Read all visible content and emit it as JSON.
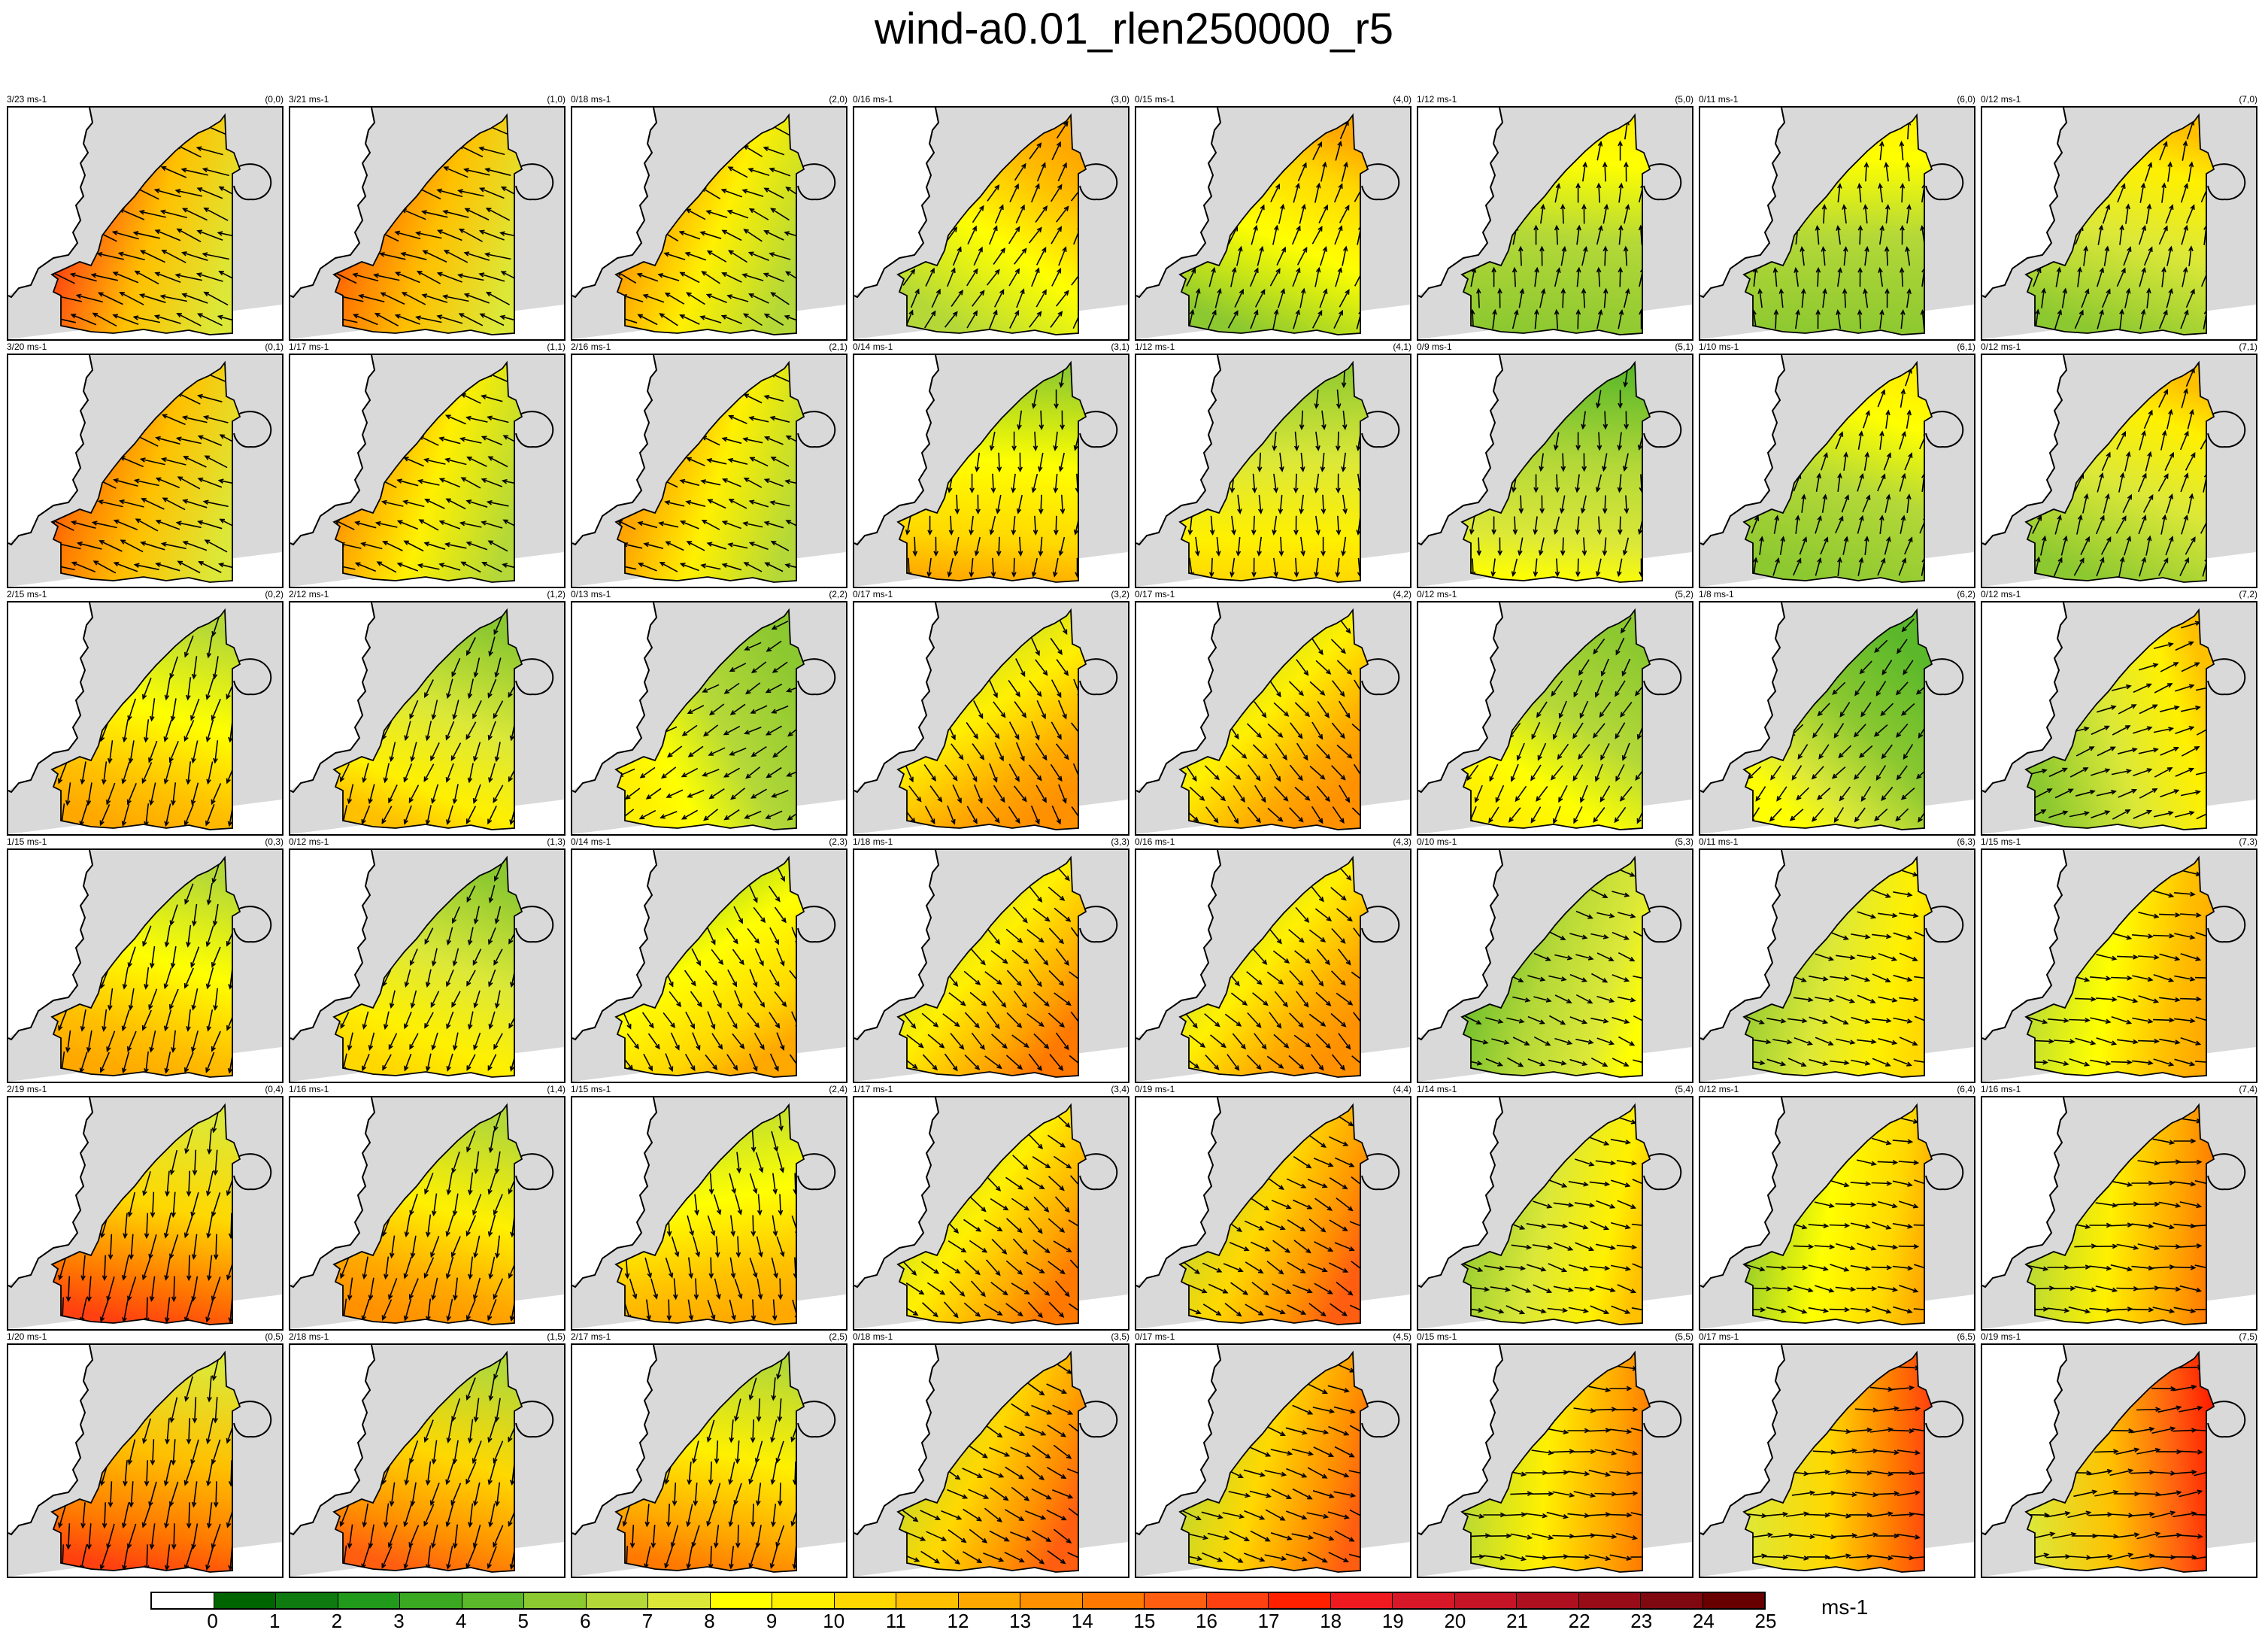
{
  "chart_data": {
    "type": "heatmap",
    "title": "wind-a0.01_rlen250000_r5",
    "colorbar": {
      "tick_labels": [
        "0",
        "1",
        "2",
        "3",
        "4",
        "5",
        "6",
        "7",
        "8",
        "9",
        "10",
        "11",
        "12",
        "13",
        "14",
        "15",
        "16",
        "17",
        "18",
        "19",
        "20",
        "21",
        "22",
        "23",
        "24",
        "25"
      ],
      "unit": "ms-1",
      "colors": [
        "#ffffff",
        "#006400",
        "#0e7a10",
        "#219a1c",
        "#3aa820",
        "#5ab82a",
        "#8cc830",
        "#b4d838",
        "#dce838",
        "#ffff00",
        "#fff000",
        "#ffd800",
        "#ffc000",
        "#ffa800",
        "#ff9000",
        "#ff7800",
        "#ff5e10",
        "#ff4010",
        "#ff2000",
        "#ee1a20",
        "#d81828",
        "#c41426",
        "#ae1020",
        "#980c18",
        "#800810",
        "#680000"
      ]
    },
    "panels": [
      {
        "col": 0,
        "row": 0,
        "range": "3/23 ms-1",
        "index": "(0,0)",
        "dir": 200,
        "speed": 0.82,
        "hot": 0.95
      },
      {
        "col": 1,
        "row": 0,
        "range": "3/21 ms-1",
        "index": "(1,0)",
        "dir": 200,
        "speed": 0.78,
        "hot": 0.9
      },
      {
        "col": 2,
        "row": 0,
        "range": "0/18 ms-1",
        "index": "(2,0)",
        "dir": 205,
        "speed": 0.55,
        "hot": 0.75
      },
      {
        "col": 3,
        "row": 0,
        "range": "0/16 ms-1",
        "index": "(3,0)",
        "dir": 300,
        "speed": 0.45,
        "hot": 0.65
      },
      {
        "col": 4,
        "row": 0,
        "range": "0/15 ms-1",
        "index": "(4,0)",
        "dir": 290,
        "speed": 0.45,
        "hot": 0.6
      },
      {
        "col": 5,
        "row": 0,
        "range": "1/12 ms-1",
        "index": "(5,0)",
        "dir": 275,
        "speed": 0.42,
        "hot": 0.45
      },
      {
        "col": 6,
        "row": 0,
        "range": "0/11 ms-1",
        "index": "(6,0)",
        "dir": 270,
        "speed": 0.4,
        "hot": 0.45
      },
      {
        "col": 7,
        "row": 0,
        "range": "0/12 ms-1",
        "index": "(7,0)",
        "dir": 285,
        "speed": 0.45,
        "hot": 0.55
      },
      {
        "col": 0,
        "row": 1,
        "range": "3/20 ms-1",
        "index": "(0,1)",
        "dir": 200,
        "speed": 0.72,
        "hot": 0.9
      },
      {
        "col": 1,
        "row": 1,
        "range": "1/17 ms-1",
        "index": "(1,1)",
        "dir": 200,
        "speed": 0.55,
        "hot": 0.75
      },
      {
        "col": 2,
        "row": 1,
        "range": "2/16 ms-1",
        "index": "(2,1)",
        "dir": 200,
        "speed": 0.45,
        "hot": 0.7
      },
      {
        "col": 3,
        "row": 1,
        "range": "0/14 ms-1",
        "index": "(3,1)",
        "dir": 95,
        "speed": 0.4,
        "hot": 0.6
      },
      {
        "col": 4,
        "row": 1,
        "range": "1/12 ms-1",
        "index": "(4,1)",
        "dir": 90,
        "speed": 0.4,
        "hot": 0.5
      },
      {
        "col": 5,
        "row": 1,
        "range": "0/9 ms-1",
        "index": "(5,1)",
        "dir": 95,
        "speed": 0.35,
        "hot": 0.4
      },
      {
        "col": 6,
        "row": 1,
        "range": "1/10 ms-1",
        "index": "(6,1)",
        "dir": 285,
        "speed": 0.38,
        "hot": 0.45
      },
      {
        "col": 7,
        "row": 1,
        "range": "0/12 ms-1",
        "index": "(7,1)",
        "dir": 290,
        "speed": 0.45,
        "hot": 0.55
      },
      {
        "col": 0,
        "row": 2,
        "range": "2/15 ms-1",
        "index": "(0,2)",
        "dir": 105,
        "speed": 0.6,
        "hot": 0.65
      },
      {
        "col": 1,
        "row": 2,
        "range": "2/12 ms-1",
        "index": "(1,2)",
        "dir": 110,
        "speed": 0.45,
        "hot": 0.55
      },
      {
        "col": 2,
        "row": 2,
        "range": "0/13 ms-1",
        "index": "(2,2)",
        "dir": 150,
        "speed": 0.35,
        "hot": 0.45
      },
      {
        "col": 3,
        "row": 2,
        "range": "0/17 ms-1",
        "index": "(3,2)",
        "dir": 60,
        "speed": 0.45,
        "hot": 0.7
      },
      {
        "col": 4,
        "row": 2,
        "range": "0/17 ms-1",
        "index": "(4,2)",
        "dir": 50,
        "speed": 0.45,
        "hot": 0.7
      },
      {
        "col": 5,
        "row": 2,
        "range": "0/12 ms-1",
        "index": "(5,2)",
        "dir": 120,
        "speed": 0.38,
        "hot": 0.45
      },
      {
        "col": 6,
        "row": 2,
        "range": "1/8 ms-1",
        "index": "(6,2)",
        "dir": 130,
        "speed": 0.32,
        "hot": 0.35
      },
      {
        "col": 7,
        "row": 2,
        "range": "0/12 ms-1",
        "index": "(7,2)",
        "dir": 340,
        "speed": 0.45,
        "hot": 0.55
      },
      {
        "col": 0,
        "row": 3,
        "range": "1/15 ms-1",
        "index": "(0,3)",
        "dir": 105,
        "speed": 0.55,
        "hot": 0.65
      },
      {
        "col": 1,
        "row": 3,
        "range": "0/12 ms-1",
        "index": "(1,3)",
        "dir": 110,
        "speed": 0.35,
        "hot": 0.5
      },
      {
        "col": 2,
        "row": 3,
        "range": "0/14 ms-1",
        "index": "(2,3)",
        "dir": 60,
        "speed": 0.4,
        "hot": 0.6
      },
      {
        "col": 3,
        "row": 3,
        "range": "1/18 ms-1",
        "index": "(3,3)",
        "dir": 45,
        "speed": 0.5,
        "hot": 0.75
      },
      {
        "col": 4,
        "row": 3,
        "range": "0/16 ms-1",
        "index": "(4,3)",
        "dir": 45,
        "speed": 0.45,
        "hot": 0.7
      },
      {
        "col": 5,
        "row": 3,
        "range": "0/10 ms-1",
        "index": "(5,3)",
        "dir": 20,
        "speed": 0.35,
        "hot": 0.4
      },
      {
        "col": 6,
        "row": 3,
        "range": "0/11 ms-1",
        "index": "(6,3)",
        "dir": 15,
        "speed": 0.42,
        "hot": 0.5
      },
      {
        "col": 7,
        "row": 3,
        "range": "1/15 ms-1",
        "index": "(7,3)",
        "dir": 10,
        "speed": 0.5,
        "hot": 0.65
      },
      {
        "col": 0,
        "row": 4,
        "range": "2/19 ms-1",
        "index": "(0,4)",
        "dir": 100,
        "speed": 0.72,
        "hot": 0.85
      },
      {
        "col": 1,
        "row": 4,
        "range": "1/16 ms-1",
        "index": "(1,4)",
        "dir": 105,
        "speed": 0.58,
        "hot": 0.7
      },
      {
        "col": 2,
        "row": 4,
        "range": "1/15 ms-1",
        "index": "(2,4)",
        "dir": 80,
        "speed": 0.5,
        "hot": 0.65
      },
      {
        "col": 3,
        "row": 4,
        "range": "1/17 ms-1",
        "index": "(3,4)",
        "dir": 40,
        "speed": 0.5,
        "hot": 0.75
      },
      {
        "col": 4,
        "row": 4,
        "range": "0/19 ms-1",
        "index": "(4,4)",
        "dir": 30,
        "speed": 0.5,
        "hot": 0.8
      },
      {
        "col": 5,
        "row": 4,
        "range": "1/14 ms-1",
        "index": "(5,4)",
        "dir": 15,
        "speed": 0.45,
        "hot": 0.55
      },
      {
        "col": 6,
        "row": 4,
        "range": "0/12 ms-1",
        "index": "(6,4)",
        "dir": 10,
        "speed": 0.45,
        "hot": 0.6
      },
      {
        "col": 7,
        "row": 4,
        "range": "1/16 ms-1",
        "index": "(7,4)",
        "dir": 5,
        "speed": 0.55,
        "hot": 0.75
      },
      {
        "col": 0,
        "row": 5,
        "range": "1/20 ms-1",
        "index": "(0,5)",
        "dir": 100,
        "speed": 0.75,
        "hot": 0.9
      },
      {
        "col": 1,
        "row": 5,
        "range": "2/18 ms-1",
        "index": "(1,5)",
        "dir": 105,
        "speed": 0.65,
        "hot": 0.8
      },
      {
        "col": 2,
        "row": 5,
        "range": "2/17 ms-1",
        "index": "(2,5)",
        "dir": 100,
        "speed": 0.6,
        "hot": 0.75
      },
      {
        "col": 3,
        "row": 5,
        "range": "0/18 ms-1",
        "index": "(3,5)",
        "dir": 30,
        "speed": 0.55,
        "hot": 0.8
      },
      {
        "col": 4,
        "row": 5,
        "range": "0/17 ms-1",
        "index": "(4,5)",
        "dir": 20,
        "speed": 0.55,
        "hot": 0.8
      },
      {
        "col": 5,
        "row": 5,
        "range": "0/15 ms-1",
        "index": "(5,5)",
        "dir": 5,
        "speed": 0.55,
        "hot": 0.75
      },
      {
        "col": 6,
        "row": 5,
        "range": "0/17 ms-1",
        "index": "(6,5)",
        "dir": 0,
        "speed": 0.6,
        "hot": 0.85
      },
      {
        "col": 7,
        "row": 5,
        "range": "0/19 ms-1",
        "index": "(7,5)",
        "dir": 355,
        "speed": 0.65,
        "hot": 0.95
      }
    ]
  }
}
